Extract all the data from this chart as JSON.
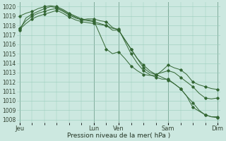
{
  "background_color": "#cce8e0",
  "grid_color": "#99ccbb",
  "line_color": "#336633",
  "ylabel_min": 1008,
  "ylabel_max": 1020,
  "xlabel": "Pression niveau de la mer( hPa )",
  "xtick_labels": [
    "Jeu",
    "",
    "Lun",
    "Ven",
    "",
    "Sam",
    "",
    "Dim"
  ],
  "xtick_positions": [
    0,
    6,
    12,
    16,
    20,
    24,
    28,
    32
  ],
  "xtick_show": [
    "Jeu",
    "Lun",
    "Ven",
    "Sam",
    "Dim"
  ],
  "xtick_show_pos": [
    0,
    12,
    16,
    24,
    32
  ],
  "total_points": 33,
  "series1": [
    [
      0,
      1017.5
    ],
    [
      1,
      1018.8
    ],
    [
      2,
      1019.2
    ],
    [
      3,
      1019.5
    ],
    [
      4,
      1019.8
    ],
    [
      5,
      1020.0
    ],
    [
      6,
      1019.9
    ],
    [
      7,
      1019.6
    ],
    [
      8,
      1019.2
    ],
    [
      9,
      1018.9
    ],
    [
      10,
      1018.6
    ],
    [
      11,
      1018.5
    ],
    [
      12,
      1018.4
    ],
    [
      13,
      1018.2
    ],
    [
      14,
      1018.0
    ],
    [
      15,
      1017.5
    ],
    [
      16,
      1017.5
    ],
    [
      17,
      1016.5
    ],
    [
      18,
      1015.5
    ],
    [
      19,
      1014.5
    ],
    [
      20,
      1013.8
    ],
    [
      21,
      1013.2
    ],
    [
      22,
      1012.8
    ],
    [
      23,
      1012.5
    ],
    [
      24,
      1012.2
    ],
    [
      25,
      1011.8
    ],
    [
      26,
      1011.3
    ],
    [
      27,
      1010.5
    ],
    [
      28,
      1009.8
    ],
    [
      29,
      1009.0
    ],
    [
      30,
      1008.5
    ],
    [
      31,
      1008.3
    ],
    [
      32,
      1008.2
    ]
  ],
  "series2": [
    [
      0,
      1019.0
    ],
    [
      1,
      1019.3
    ],
    [
      2,
      1019.5
    ],
    [
      3,
      1019.8
    ],
    [
      4,
      1020.0
    ],
    [
      5,
      1020.1
    ],
    [
      6,
      1020.0
    ],
    [
      7,
      1019.7
    ],
    [
      8,
      1019.3
    ],
    [
      9,
      1019.0
    ],
    [
      10,
      1018.7
    ],
    [
      11,
      1018.6
    ],
    [
      12,
      1018.5
    ],
    [
      13,
      1017.0
    ],
    [
      14,
      1015.5
    ],
    [
      15,
      1015.0
    ],
    [
      16,
      1015.2
    ],
    [
      17,
      1014.5
    ],
    [
      18,
      1013.7
    ],
    [
      19,
      1013.2
    ],
    [
      20,
      1012.8
    ],
    [
      21,
      1012.7
    ],
    [
      22,
      1012.7
    ],
    [
      23,
      1013.2
    ],
    [
      24,
      1013.8
    ],
    [
      25,
      1013.5
    ],
    [
      26,
      1013.3
    ],
    [
      27,
      1012.8
    ],
    [
      28,
      1012.0
    ],
    [
      29,
      1011.7
    ],
    [
      30,
      1011.5
    ],
    [
      31,
      1011.3
    ],
    [
      32,
      1011.2
    ]
  ],
  "series3": [
    [
      0,
      1017.7
    ],
    [
      1,
      1018.5
    ],
    [
      2,
      1019.0
    ],
    [
      3,
      1019.3
    ],
    [
      4,
      1019.5
    ],
    [
      5,
      1019.7
    ],
    [
      6,
      1019.8
    ],
    [
      7,
      1019.5
    ],
    [
      8,
      1019.1
    ],
    [
      9,
      1018.8
    ],
    [
      10,
      1018.6
    ],
    [
      11,
      1018.7
    ],
    [
      12,
      1018.7
    ],
    [
      13,
      1018.5
    ],
    [
      14,
      1018.4
    ],
    [
      15,
      1017.8
    ],
    [
      16,
      1017.5
    ],
    [
      17,
      1016.5
    ],
    [
      18,
      1015.5
    ],
    [
      19,
      1014.5
    ],
    [
      20,
      1013.5
    ],
    [
      21,
      1013.0
    ],
    [
      22,
      1012.8
    ],
    [
      23,
      1013.0
    ],
    [
      24,
      1013.2
    ],
    [
      25,
      1013.0
    ],
    [
      26,
      1012.5
    ],
    [
      27,
      1012.0
    ],
    [
      28,
      1011.5
    ],
    [
      29,
      1010.8
    ],
    [
      30,
      1010.3
    ],
    [
      31,
      1010.2
    ],
    [
      32,
      1010.3
    ]
  ],
  "series4": [
    [
      0,
      1017.6
    ],
    [
      1,
      1018.2
    ],
    [
      2,
      1018.7
    ],
    [
      3,
      1019.0
    ],
    [
      4,
      1019.2
    ],
    [
      5,
      1019.4
    ],
    [
      6,
      1019.6
    ],
    [
      7,
      1019.3
    ],
    [
      8,
      1018.9
    ],
    [
      9,
      1018.6
    ],
    [
      10,
      1018.4
    ],
    [
      11,
      1018.3
    ],
    [
      12,
      1018.2
    ],
    [
      13,
      1018.1
    ],
    [
      14,
      1018.0
    ],
    [
      15,
      1017.7
    ],
    [
      16,
      1017.6
    ],
    [
      17,
      1016.3
    ],
    [
      18,
      1015.0
    ],
    [
      19,
      1014.0
    ],
    [
      20,
      1013.2
    ],
    [
      21,
      1012.8
    ],
    [
      22,
      1012.5
    ],
    [
      23,
      1012.3
    ],
    [
      24,
      1012.3
    ],
    [
      25,
      1011.8
    ],
    [
      26,
      1011.3
    ],
    [
      27,
      1010.5
    ],
    [
      28,
      1009.3
    ],
    [
      29,
      1008.9
    ],
    [
      30,
      1008.5
    ],
    [
      31,
      1008.3
    ],
    [
      32,
      1008.3
    ]
  ]
}
